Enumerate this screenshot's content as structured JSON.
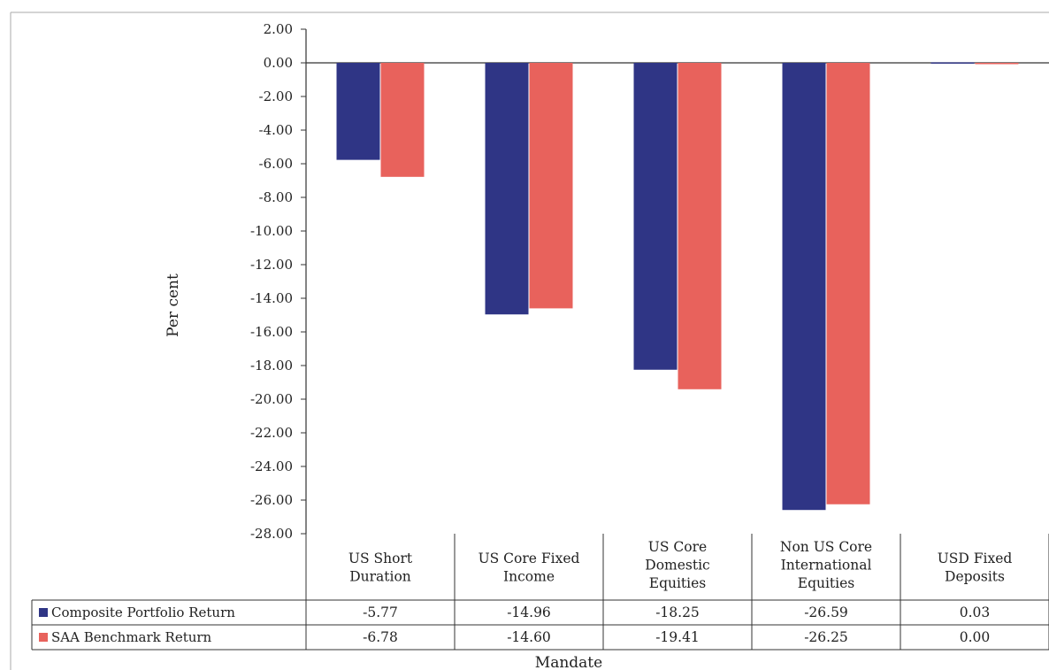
{
  "chart_data": {
    "type": "bar",
    "xlabel": "Mandate",
    "ylabel": "Per cent",
    "ylim": [
      -28,
      2
    ],
    "yticks": [
      "2.00",
      "0.00",
      "-2.00",
      "-4.00",
      "-6.00",
      "-8.00",
      "-10.00",
      "-12.00",
      "-14.00",
      "-16.00",
      "-18.00",
      "-20.00",
      "-22.00",
      "-24.00",
      "-26.00",
      "-28.00"
    ],
    "categories": [
      [
        "US Short",
        "Duration"
      ],
      [
        "US Core Fixed",
        "Income"
      ],
      [
        "US Core",
        "Domestic",
        "Equities"
      ],
      [
        "Non US Core",
        "International",
        "Equities"
      ],
      [
        "USD Fixed",
        "Deposits"
      ]
    ],
    "series": [
      {
        "name": "Composite Portfolio Return",
        "color": "#2f3585",
        "values": [
          -5.77,
          -14.96,
          -18.25,
          -26.59,
          0.03
        ],
        "labels": [
          "-5.77",
          "-14.96",
          "-18.25",
          "-26.59",
          "0.03"
        ]
      },
      {
        "name": "SAA Benchmark Return",
        "color": "#e8625c",
        "values": [
          -6.78,
          -14.6,
          -19.41,
          -26.25,
          0.0
        ],
        "labels": [
          "-6.78",
          "-14.60",
          "-19.41",
          "-26.25",
          "0.00"
        ]
      }
    ],
    "legend": "data-table",
    "grid": false
  }
}
